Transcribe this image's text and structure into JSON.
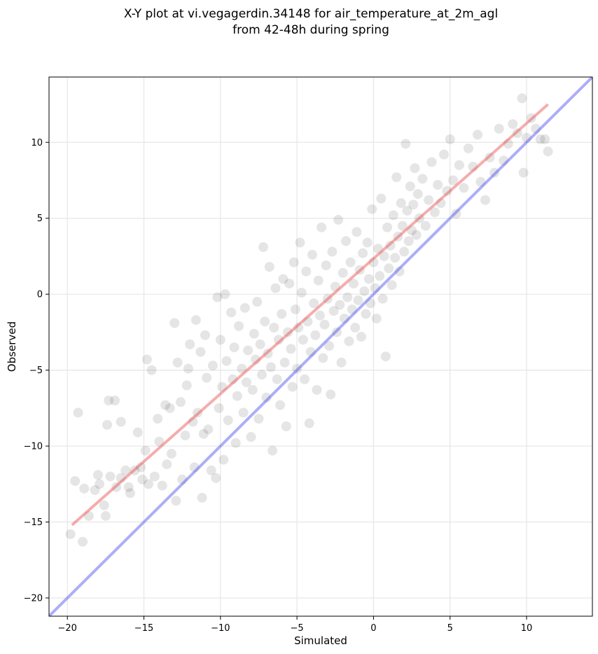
{
  "chart_data": {
    "type": "scatter",
    "title_lines": [
      "X-Y plot at vi.vegagerdin.34148 for air_temperature_at_2m_agl",
      "from 42-48h during spring"
    ],
    "xlabel": "Simulated",
    "ylabel": "Observed",
    "xlim": [
      -21.2,
      14.3
    ],
    "ylim": [
      -21.2,
      14.3
    ],
    "x_ticks": [
      -20,
      -15,
      -10,
      -5,
      0,
      5,
      10
    ],
    "y_ticks": [
      -20,
      -15,
      -10,
      -5,
      0,
      5,
      10
    ],
    "grid": true,
    "point_color": "#000000",
    "point_alpha": 0.1,
    "series": [
      {
        "type": "scatter",
        "points": [
          [
            -19.8,
            -15.8
          ],
          [
            -19.5,
            -12.3
          ],
          [
            -19.3,
            -7.8
          ],
          [
            -19.0,
            -16.3
          ],
          [
            -18.9,
            -12.8
          ],
          [
            -18.6,
            -14.6
          ],
          [
            -18.2,
            -12.9
          ],
          [
            -18.0,
            -11.9
          ],
          [
            -17.9,
            -12.5
          ],
          [
            -17.6,
            -13.9
          ],
          [
            -17.5,
            -14.6
          ],
          [
            -17.4,
            -8.6
          ],
          [
            -17.3,
            -7.0
          ],
          [
            -17.2,
            -12.0
          ],
          [
            -16.9,
            -7.0
          ],
          [
            -16.8,
            -12.7
          ],
          [
            -16.5,
            -8.4
          ],
          [
            -16.5,
            -12.1
          ],
          [
            -16.2,
            -11.6
          ],
          [
            -16.0,
            -12.7
          ],
          [
            -15.9,
            -13.1
          ],
          [
            -15.6,
            -11.6
          ],
          [
            -15.4,
            -9.1
          ],
          [
            -15.2,
            -11.4
          ],
          [
            -15.1,
            -12.2
          ],
          [
            -14.9,
            -10.3
          ],
          [
            -14.8,
            -4.3
          ],
          [
            -14.7,
            -12.5
          ],
          [
            -14.5,
            -5.0
          ],
          [
            -14.3,
            -12.0
          ],
          [
            -14.1,
            -8.2
          ],
          [
            -14.0,
            -9.7
          ],
          [
            -13.8,
            -12.6
          ],
          [
            -13.6,
            -7.3
          ],
          [
            -13.5,
            -11.2
          ],
          [
            -13.3,
            -7.5
          ],
          [
            -13.2,
            -10.5
          ],
          [
            -13.0,
            -1.9
          ],
          [
            -12.9,
            -13.6
          ],
          [
            -12.8,
            -4.5
          ],
          [
            -12.6,
            -7.1
          ],
          [
            -12.5,
            -12.2
          ],
          [
            -12.3,
            -9.3
          ],
          [
            -12.2,
            -6.0
          ],
          [
            -12.1,
            -4.9
          ],
          [
            -12.0,
            -3.3
          ],
          [
            -11.8,
            -8.4
          ],
          [
            -11.7,
            -11.4
          ],
          [
            -11.6,
            -1.7
          ],
          [
            -11.5,
            -7.8
          ],
          [
            -11.3,
            -3.8
          ],
          [
            -11.2,
            -13.4
          ],
          [
            -11.1,
            -9.2
          ],
          [
            -11.0,
            -2.7
          ],
          [
            -10.9,
            -5.5
          ],
          [
            -10.8,
            -8.9
          ],
          [
            -10.6,
            -11.6
          ],
          [
            -10.5,
            -4.7
          ],
          [
            -10.3,
            -12.1
          ],
          [
            -10.2,
            -0.2
          ],
          [
            -10.1,
            -7.5
          ],
          [
            -10.0,
            -3.0
          ],
          [
            -9.9,
            -6.1
          ],
          [
            -9.8,
            -10.9
          ],
          [
            -9.7,
            0.0
          ],
          [
            -9.6,
            -4.4
          ],
          [
            -9.5,
            -8.3
          ],
          [
            -9.3,
            -1.2
          ],
          [
            -9.2,
            -5.6
          ],
          [
            -9.1,
            -3.5
          ],
          [
            -9.0,
            -9.8
          ],
          [
            -8.9,
            -6.7
          ],
          [
            -8.8,
            -2.1
          ],
          [
            -8.6,
            -4.9
          ],
          [
            -8.5,
            -7.8
          ],
          [
            -8.4,
            -0.9
          ],
          [
            -8.3,
            -5.8
          ],
          [
            -8.2,
            -3.7
          ],
          [
            -8.0,
            -9.4
          ],
          [
            -7.9,
            -6.3
          ],
          [
            -7.8,
            -2.6
          ],
          [
            -7.7,
            -4.3
          ],
          [
            -7.6,
            -0.5
          ],
          [
            -7.5,
            -8.2
          ],
          [
            -7.4,
            -3.3
          ],
          [
            -7.3,
            -5.3
          ],
          [
            -7.2,
            3.1
          ],
          [
            -7.1,
            -1.8
          ],
          [
            -7.0,
            -6.8
          ],
          [
            -6.9,
            -3.9
          ],
          [
            -6.8,
            1.8
          ],
          [
            -6.7,
            -4.8
          ],
          [
            -6.6,
            -10.3
          ],
          [
            -6.5,
            -2.2
          ],
          [
            -6.4,
            0.4
          ],
          [
            -6.3,
            -5.6
          ],
          [
            -6.2,
            -3.0
          ],
          [
            -6.1,
            -7.3
          ],
          [
            -6.0,
            -1.3
          ],
          [
            -5.9,
            1.0
          ],
          [
            -5.8,
            -4.5
          ],
          [
            -5.7,
            -8.7
          ],
          [
            -5.6,
            -2.5
          ],
          [
            -5.5,
            0.7
          ],
          [
            -5.4,
            -3.6
          ],
          [
            -5.3,
            -6.1
          ],
          [
            -5.2,
            2.1
          ],
          [
            -5.1,
            -1.0
          ],
          [
            -5.0,
            -4.9
          ],
          [
            -4.9,
            -2.2
          ],
          [
            -4.8,
            3.4
          ],
          [
            -4.7,
            0.1
          ],
          [
            -4.6,
            -3.0
          ],
          [
            -4.5,
            -5.6
          ],
          [
            -4.4,
            1.5
          ],
          [
            -4.3,
            -1.8
          ],
          [
            -4.2,
            -8.5
          ],
          [
            -4.1,
            -3.8
          ],
          [
            -4.0,
            2.6
          ],
          [
            -3.9,
            -0.6
          ],
          [
            -3.8,
            -2.7
          ],
          [
            -3.7,
            -6.3
          ],
          [
            -3.6,
            0.9
          ],
          [
            -3.5,
            -1.4
          ],
          [
            -3.4,
            4.4
          ],
          [
            -3.3,
            -4.2
          ],
          [
            -3.2,
            -2.0
          ],
          [
            -3.1,
            1.9
          ],
          [
            -3.0,
            -0.3
          ],
          [
            -2.9,
            -3.4
          ],
          [
            -2.8,
            -6.6
          ],
          [
            -2.7,
            2.8
          ],
          [
            -2.6,
            -1.1
          ],
          [
            -2.5,
            0.5
          ],
          [
            -2.4,
            -2.5
          ],
          [
            -2.3,
            4.9
          ],
          [
            -2.2,
            -0.7
          ],
          [
            -2.1,
            -4.5
          ],
          [
            -2.0,
            1.4
          ],
          [
            -1.9,
            -1.6
          ],
          [
            -1.8,
            3.5
          ],
          [
            -1.7,
            -0.2
          ],
          [
            -1.6,
            -3.1
          ],
          [
            -1.5,
            2.1
          ],
          [
            -1.4,
            -1.0
          ],
          [
            -1.3,
            0.7
          ],
          [
            -1.2,
            -2.2
          ],
          [
            -1.1,
            4.1
          ],
          [
            -1.0,
            -0.4
          ],
          [
            -0.9,
            1.6
          ],
          [
            -0.8,
            -2.8
          ],
          [
            -0.7,
            2.7
          ],
          [
            -0.6,
            0.2
          ],
          [
            -0.5,
            -1.3
          ],
          [
            -0.4,
            3.4
          ],
          [
            -0.3,
            1.0
          ],
          [
            -0.2,
            -0.6
          ],
          [
            -0.1,
            5.6
          ],
          [
            0.0,
            2.1
          ],
          [
            0.1,
            0.4
          ],
          [
            0.2,
            -1.6
          ],
          [
            0.3,
            3.0
          ],
          [
            0.4,
            1.2
          ],
          [
            0.5,
            6.3
          ],
          [
            0.6,
            -0.3
          ],
          [
            0.7,
            2.5
          ],
          [
            0.8,
            -4.1
          ],
          [
            0.9,
            4.4
          ],
          [
            1.0,
            1.7
          ],
          [
            1.1,
            3.2
          ],
          [
            1.2,
            0.6
          ],
          [
            1.3,
            5.2
          ],
          [
            1.4,
            2.4
          ],
          [
            1.5,
            7.7
          ],
          [
            1.6,
            3.8
          ],
          [
            1.7,
            1.5
          ],
          [
            1.8,
            6.0
          ],
          [
            1.9,
            4.5
          ],
          [
            2.0,
            2.8
          ],
          [
            2.1,
            9.9
          ],
          [
            2.2,
            5.5
          ],
          [
            2.3,
            3.5
          ],
          [
            2.4,
            7.1
          ],
          [
            2.5,
            4.2
          ],
          [
            2.6,
            5.9
          ],
          [
            2.7,
            8.3
          ],
          [
            2.8,
            3.9
          ],
          [
            2.9,
            6.6
          ],
          [
            3.0,
            5.0
          ],
          [
            3.2,
            7.6
          ],
          [
            3.4,
            4.5
          ],
          [
            3.6,
            6.2
          ],
          [
            3.8,
            8.7
          ],
          [
            4.0,
            5.4
          ],
          [
            4.2,
            7.2
          ],
          [
            4.4,
            6.0
          ],
          [
            4.6,
            9.2
          ],
          [
            4.8,
            6.8
          ],
          [
            5.0,
            10.2
          ],
          [
            5.2,
            7.5
          ],
          [
            5.4,
            5.3
          ],
          [
            5.6,
            8.5
          ],
          [
            5.9,
            7.0
          ],
          [
            6.2,
            9.6
          ],
          [
            6.5,
            8.4
          ],
          [
            6.8,
            10.5
          ],
          [
            7.0,
            7.4
          ],
          [
            7.3,
            6.2
          ],
          [
            7.6,
            9.0
          ],
          [
            7.9,
            8.0
          ],
          [
            8.2,
            10.9
          ],
          [
            8.5,
            8.8
          ],
          [
            8.8,
            9.9
          ],
          [
            9.1,
            11.2
          ],
          [
            9.4,
            10.6
          ],
          [
            9.7,
            12.9
          ],
          [
            9.8,
            8.0
          ],
          [
            10.0,
            10.3
          ],
          [
            10.3,
            11.6
          ],
          [
            10.6,
            10.9
          ],
          [
            10.9,
            10.2
          ],
          [
            11.2,
            10.2
          ],
          [
            11.4,
            9.4
          ]
        ]
      },
      {
        "type": "line",
        "color": "#e84a4a",
        "x": [
          -19.7,
          11.4
        ],
        "y": [
          -15.2,
          12.5
        ]
      },
      {
        "type": "line",
        "color": "#4a4af0",
        "x": [
          -21.2,
          14.3
        ],
        "y": [
          -21.2,
          14.3
        ]
      }
    ]
  }
}
